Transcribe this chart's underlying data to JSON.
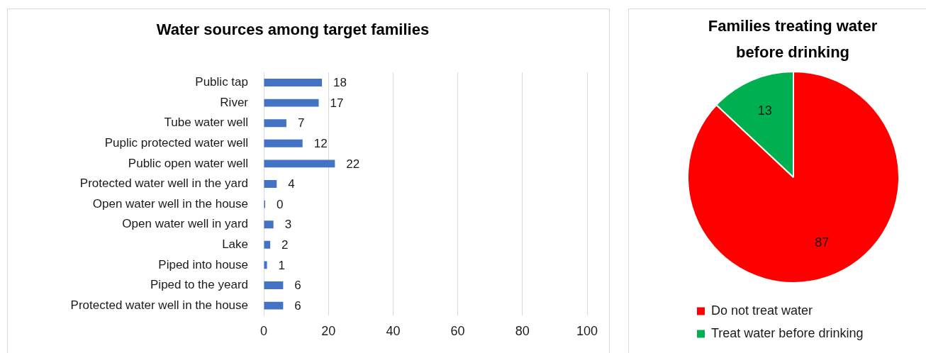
{
  "chart_data": [
    {
      "type": "bar",
      "orientation": "horizontal",
      "title": "Water sources among target families",
      "categories": [
        "Public tap",
        "River",
        "Tube water well",
        "Puplic protected water well",
        "Public open water well",
        "Protected water well in the yard",
        "Open water well in the house",
        "Open water well in yard",
        "Lake",
        "Piped into house",
        "Piped to the yeard",
        "Protected water well in the house"
      ],
      "values": [
        18,
        17,
        7,
        12,
        22,
        4,
        0,
        3,
        2,
        1,
        6,
        6
      ],
      "color": "#4472c4",
      "xlim": [
        0,
        100
      ],
      "xticks": [
        0,
        20,
        40,
        60,
        80,
        100
      ],
      "grid": "x",
      "data_labels": true,
      "legend": false
    },
    {
      "type": "pie",
      "title": "Families treating water before drinking",
      "categories": [
        "Do not treat water",
        "Treat water before drinking"
      ],
      "values": [
        87,
        13
      ],
      "colors": [
        "#ff0000",
        "#00b050"
      ],
      "data_labels": true,
      "legend": "bottom"
    }
  ]
}
